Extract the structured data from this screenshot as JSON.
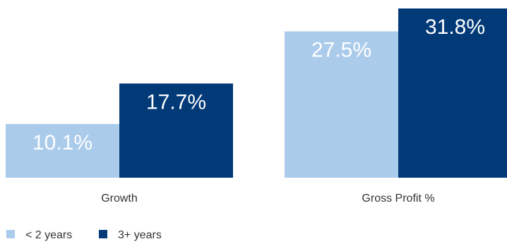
{
  "chart_data": {
    "type": "bar",
    "categories": [
      "Growth",
      "Gross Profit %"
    ],
    "series": [
      {
        "name": "< 2 years",
        "values": [
          10.1,
          27.5
        ],
        "labels": [
          "10.1%",
          "27.5%"
        ],
        "color": "#abcbeb"
      },
      {
        "name": "3+ years",
        "values": [
          17.7,
          31.8
        ],
        "labels": [
          "17.7%",
          "31.8%"
        ],
        "color": "#023a78"
      }
    ],
    "ylim": [
      0,
      31.8
    ],
    "grid": false,
    "legend": "bottom-left",
    "title": "",
    "xlabel": "",
    "ylabel": ""
  }
}
